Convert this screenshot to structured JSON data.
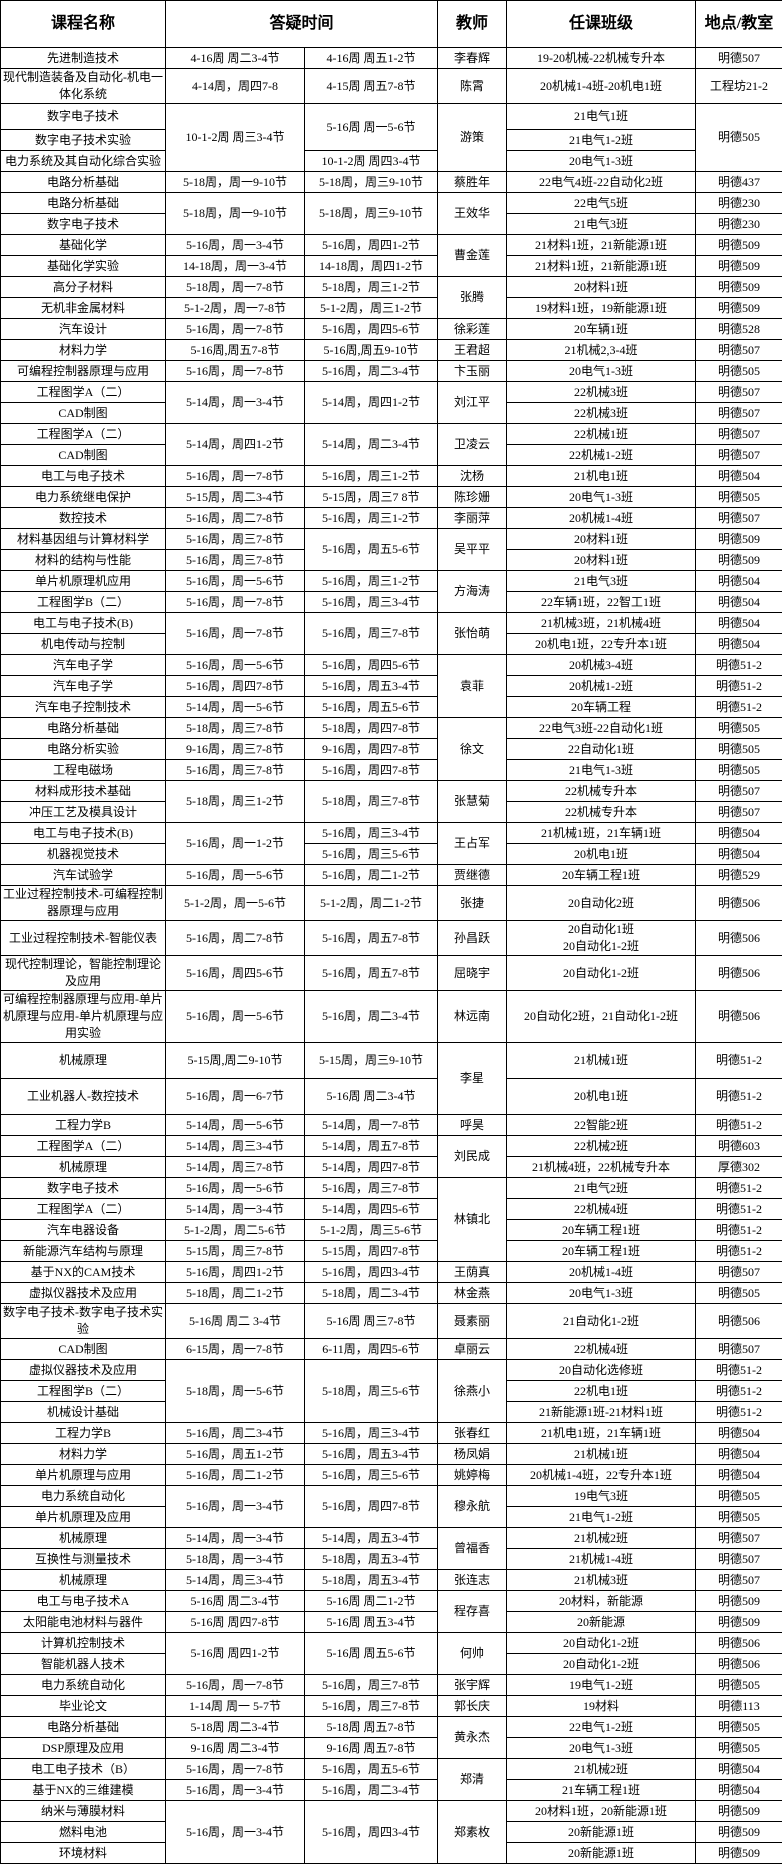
{
  "colors": {
    "border": "#000000",
    "background": "#ffffff",
    "text": "#000000"
  },
  "header": {
    "columns": [
      "课程名称",
      "答疑时间",
      "教师",
      "任课班级",
      "地点/教室"
    ]
  },
  "table": {
    "rows": [
      [
        "先进制造技术",
        "4-16周 周二3-4节",
        "4-16周 周五1-2节",
        "李春辉",
        "19-20机械-22机械专升本",
        "明德507"
      ],
      [
        "现代制造装备及自动化-机电一体化系统",
        "4-14周，周四7-8",
        "4-15周 周五7-8节",
        "陈霄",
        "20机械1-4班-20机电1班",
        "工程坊21-2"
      ],
      [
        "数字电子技术",
        {
          "t": "10-1-2周 周三3-4节",
          "rs": 3
        },
        {
          "t": "5-16周 周一5-6节",
          "rs": 2
        },
        {
          "t": "游策",
          "rs": 3
        },
        "21电气1班",
        {
          "t": "明德505",
          "rs": 3
        }
      ],
      [
        "数字电子技术实验",
        "21电气1-2班"
      ],
      [
        "电力系统及其自动化综合实验",
        "10-1-2周 周四3-4节",
        "20电气1-3班"
      ],
      [
        "电路分析基础",
        "5-18周，周一9-10节",
        "5-18周，周三9-10节",
        "蔡胜年",
        "22电气4班-22自动化2班",
        "明德437"
      ],
      [
        "电路分析基础",
        {
          "t": "5-18周，周一9-10节",
          "rs": 2
        },
        {
          "t": "5-18周，周三9-10节",
          "rs": 2
        },
        {
          "t": "王效华",
          "rs": 2
        },
        "22电气5班",
        "明德230"
      ],
      [
        "数字电子技术",
        "21电气3班",
        "明德230"
      ],
      [
        "基础化学",
        "5-16周，周一3-4节",
        "5-16周，周四1-2节",
        {
          "t": "曹金莲",
          "rs": 2
        },
        "21材料1班，21新能源1班",
        "明德509"
      ],
      [
        "基础化学实验",
        "14-18周，周一3-4节",
        "14-18周，周四1-2节",
        "21材料1班，21新能源1班",
        "明德509"
      ],
      [
        "高分子材料",
        "5-18周，周一7-8节",
        "5-18周，周三1-2节",
        {
          "t": "张腾",
          "rs": 2
        },
        "20材料1班",
        "明德509"
      ],
      [
        "无机非金属材料",
        "5-1-2周，周一7-8节",
        "5-1-2周，周三1-2节",
        "19材料1班，19新能源1班",
        "明德509"
      ],
      [
        "汽车设计",
        "5-16周，周一7-8节",
        "5-16周，周四5-6节",
        "徐彩莲",
        "20车辆1班",
        "明德528"
      ],
      [
        "材料力学",
        "5-16周,周五7-8节",
        "5-16周,周五9-10节",
        "王君超",
        "21机械2,3-4班",
        "明德507"
      ],
      [
        "可编程控制器原理与应用",
        "5-16周，周一7-8节",
        "5-16周，周二3-4节",
        "卞玉丽",
        "20电气1-3班",
        "明德505"
      ],
      [
        "工程图学A（二）",
        {
          "t": "5-14周，周一3-4节",
          "rs": 2
        },
        {
          "t": "5-14周，周四1-2节",
          "rs": 2
        },
        {
          "t": "刘江平",
          "rs": 2
        },
        "22机械3班",
        "明德507"
      ],
      [
        "CAD制图",
        "22机械3班",
        "明德507"
      ],
      [
        "工程图学A（二）",
        {
          "t": "5-14周，周四1-2节",
          "rs": 2
        },
        {
          "t": "5-14周，周二3-4节",
          "rs": 2
        },
        {
          "t": "卫凌云",
          "rs": 2
        },
        "22机械1班",
        "明德507"
      ],
      [
        "CAD制图",
        "22机械1-2班",
        "明德507"
      ],
      [
        "电工与电子技术",
        "5-16周，周一7-8节",
        "5-16周，周三1-2节",
        "沈杨",
        "21机电1班",
        "明德504"
      ],
      [
        "电力系统继电保护",
        "5-15周，周二3-4节",
        "5-15周，周三7 8节",
        "陈珍姗",
        "20电气1-3班",
        "明德505"
      ],
      [
        "数控技术",
        "5-16周，周二7-8节",
        "5-16周，周三1-2节",
        "李丽萍",
        "20机械1-4班",
        "明德507"
      ],
      [
        "材料基因组与计算材料学",
        "5-16周，周三7-8节",
        {
          "t": "5-16周，周五5-6节",
          "rs": 2
        },
        {
          "t": "吴平平",
          "rs": 2
        },
        "20材料1班",
        "明德509"
      ],
      [
        "材料的结构与性能",
        "5-16周，周三7-8节",
        "20材料1班",
        "明德509"
      ],
      [
        "单片机原理机应用",
        "5-16周，周一5-6节",
        "5-16周，周三1-2节",
        {
          "t": "方海涛",
          "rs": 2
        },
        "21电气3班",
        "明德504"
      ],
      [
        "工程图学B（二）",
        "5-16周，周一7-8节",
        "5-16周，周三3-4节",
        "22车辆1班，22智工1班",
        "明德504"
      ],
      [
        "电工与电子技术(B)",
        {
          "t": "5-16周，周一7-8节",
          "rs": 2
        },
        {
          "t": "5-16周，周三7-8节",
          "rs": 2
        },
        {
          "t": "张怡萌",
          "rs": 2
        },
        "21机械3班，21机械4班",
        "明德504"
      ],
      [
        "机电传动与控制",
        "20机电1班，22专升本1班",
        "明德504"
      ],
      [
        "汽车电子学",
        "5-16周，周一5-6节",
        "5-16周，周四5-6节",
        {
          "t": "袁菲",
          "rs": 3
        },
        "20机械3-4班",
        "明德51-2"
      ],
      [
        "汽车电子学",
        "5-16周，周四7-8节",
        "5-16周，周五3-4节",
        "20机械1-2班",
        "明德51-2"
      ],
      [
        "汽车电子控制技术",
        "5-14周，周一5-6节",
        "5-16周，周五5-6节",
        "20车辆工程",
        "明德51-2"
      ],
      [
        "电路分析基础",
        "5-18周，周三7-8节",
        "5-18周，周四7-8节",
        {
          "t": "徐文",
          "rs": 3
        },
        "22电气3班-22自动化1班",
        "明德505"
      ],
      [
        "电路分析实验",
        "9-16周，周三7-8节",
        "9-16周，周四7-8节",
        "22自动化1班",
        "明德505"
      ],
      [
        "工程电磁场",
        "5-16周，周三7-8节",
        "5-16周，周四7-8节",
        "21电气1-3班",
        "明德505"
      ],
      [
        "材料成形技术基础",
        {
          "t": "5-18周，周三1-2节",
          "rs": 2
        },
        {
          "t": "5-18周，周三7-8节",
          "rs": 2
        },
        {
          "t": "张慧菊",
          "rs": 2
        },
        "22机械专升本",
        "明德507"
      ],
      [
        "冲压工艺及模具设计",
        "22机械专升本",
        "明德507"
      ],
      [
        "电工与电子技术(B)",
        {
          "t": "5-16周，周一1-2节",
          "rs": 2
        },
        "5-16周，周三3-4节",
        {
          "t": "王占军",
          "rs": 2
        },
        "21机械1班，21车辆1班",
        "明德504"
      ],
      [
        "机器视觉技术",
        "5-16周，周三5-6节",
        "20机电1班",
        "明德504"
      ],
      [
        "汽车试验学",
        "5-16周，周一5-6节",
        "5-16周，周二1-2节",
        "贾继德",
        "20车辆工程1班",
        "明德529"
      ],
      [
        "工业过程控制技术-可编程控制器原理与应用",
        "5-1-2周，周一5-6节",
        "5-1-2周，周二1-2节",
        "张捷",
        "20自动化2班",
        "明德506"
      ],
      [
        "工业过程控制技术-智能仪表",
        "5-16周，周二7-8节",
        "5-16周，周五7-8节",
        "孙昌跃",
        "20自动化1班\n20自动化1-2班",
        "明德506"
      ],
      [
        "现代控制理论，智能控制理论及应用",
        "5-16周，周四5-6节",
        "5-16周，周五7-8节",
        "屈晓宇",
        "20自动化1-2班",
        "明德506"
      ],
      [
        "可编程控制器原理与应用-单片机原理与应用-单片机原理与应用实验",
        "5-16周，周一5-6节",
        "5-16周，周二3-4节",
        "林远南",
        "20自动化2班，21自动化1-2班",
        "明德506"
      ],
      [
        "机械原理",
        "5-15周,周二9-10节",
        "5-15周，周三9-10节",
        {
          "t": "李星",
          "rs": 2
        },
        "21机械1班",
        "明德51-2"
      ],
      [
        "工业机器人-数控技术",
        "5-16周，周一6-7节",
        "5-16周 周二3-4节",
        "20机电1班",
        "明德51-2"
      ],
      [
        "工程力学B",
        "5-14周，周一5-6节",
        "5-14周，周一7-8节",
        "呼昊",
        "22智能2班",
        "明德51-2"
      ],
      [
        "工程图学A（二）",
        "5-14周，周三3-4节",
        "5-14周，周五7-8节",
        {
          "t": "刘民成",
          "rs": 2
        },
        "22机械2班",
        "明德603"
      ],
      [
        "机械原理",
        "5-14周，周三7-8节",
        "5-14周，周四7-8节",
        "21机械4班，22机械专升本",
        "厚德302"
      ],
      [
        "数字电子技术",
        "5-16周，周一5-6节",
        "5-16周，周三7-8节",
        {
          "t": "林镇北",
          "rs": 4
        },
        "21电气2班",
        "明德51-2"
      ],
      [
        "工程图学A（二）",
        "5-14周，周一3-4节",
        "5-14周，周四5-6节",
        "22机械4班",
        "明德51-2"
      ],
      [
        "汽车电器设备",
        "5-1-2周，周二5-6节",
        "5-1-2周，周三5-6节",
        "20车辆工程1班",
        "明德51-2"
      ],
      [
        "新能源汽车结构与原理",
        "5-15周，周三7-8节",
        "5-15周，周四7-8节",
        "20车辆工程1班",
        "明德51-2"
      ],
      [
        "基于NX的CAM技术",
        "5-16周，周四1-2节",
        "5-16周，周四3-4节",
        "王荫真",
        "20机械1-4班",
        "明德507"
      ],
      [
        "虚拟仪器技术及应用",
        "5-18周，周二1-2节",
        "5-18周，周二3-4节",
        "林金燕",
        "20电气1-3班",
        "明德505"
      ],
      [
        "数字电子技术-数字电子技术实验",
        "5-16周 周二 3-4节",
        "5-16周 周三7-8节",
        "聂素丽",
        "21自动化1-2班",
        "明德506"
      ],
      [
        "CAD制图",
        "6-15周，周一7-8节",
        "6-11周，周四5-6节",
        "卓丽云",
        "22机械4班",
        "明德507"
      ],
      [
        "虚拟仪器技术及应用",
        {
          "t": "5-18周，周一5-6节",
          "rs": 3
        },
        {
          "t": "5-18周，周三5-6节",
          "rs": 3
        },
        {
          "t": "徐燕小",
          "rs": 3
        },
        "20自动化选修班",
        "明德51-2"
      ],
      [
        "工程图学B（二）",
        "22机电1班",
        "明德51-2"
      ],
      [
        "机械设计基础",
        "21新能源1班-21材料1班",
        "明德51-2"
      ],
      [
        "工程力学B",
        "5-16周，周二3-4节",
        "5-16周，周三3-4节",
        "张春红",
        "21机电1班，21车辆1班",
        "明德504"
      ],
      [
        "材料力学",
        "5-16周，周五1-2节",
        "5-16周，周五3-4节",
        "杨凤娟",
        "21机械1班",
        "明德504"
      ],
      [
        "单片机原理与应用",
        "5-16周，周二1-2节",
        "5-16周，周三5-6节",
        "姚婷梅",
        "20机械1-4班，22专升本1班",
        "明德504"
      ],
      [
        "电力系统自动化",
        {
          "t": "5-16周，周一3-4节",
          "rs": 2
        },
        {
          "t": "5-16周，周四7-8节",
          "rs": 2
        },
        {
          "t": "穆永航",
          "rs": 2
        },
        "19电气3班",
        "明德505"
      ],
      [
        "单片机原理及应用",
        "21电气1-2班",
        "明德505"
      ],
      [
        "机械原理",
        "5-14周，周一3-4节",
        "5-14周，周五3-4节",
        {
          "t": "曾福香",
          "rs": 2
        },
        "21机械2班",
        "明德507"
      ],
      [
        "互换性与测量技术",
        "5-18周，周一3-4节",
        "5-18周，周五3-4节",
        "21机械1-4班",
        "明德507"
      ],
      [
        "机械原理",
        "5-14周，周三3-4节",
        "5-18周，周五3-4节",
        "张连志",
        "21机械3班",
        "明德507"
      ],
      [
        "电工与电子技术A",
        "5-16周 周二3-4节",
        "5-16周 周二1-2节",
        {
          "t": "程存喜",
          "rs": 2
        },
        "20材料，新能源",
        "明德509"
      ],
      [
        "太阳能电池材料与器件",
        "5-16周 周四7-8节",
        "5-16周 周五3-4节",
        "20新能源",
        "明德509"
      ],
      [
        "计算机控制技术",
        {
          "t": "5-16周 周四1-2节",
          "rs": 2
        },
        {
          "t": "5-16周 周五5-6节",
          "rs": 2
        },
        {
          "t": "何帅",
          "rs": 2
        },
        "20自动化1-2班",
        "明德506"
      ],
      [
        "智能机器人技术",
        "20自动化1-2班",
        "明德506"
      ],
      [
        "电力系统自动化",
        "5-16周，周一7-8节",
        "5-16周，周三7-8节",
        "张宇辉",
        "19电气1-2班",
        "明德505"
      ],
      [
        "毕业论文",
        "1-14周 周一 5-7节",
        "5-16周，周三7-8节",
        "郭长庆",
        "19材料",
        "明德113"
      ],
      [
        "电路分析基础",
        "5-18周 周二3-4节",
        "5-18周 周五7-8节",
        {
          "t": "黄永杰",
          "rs": 2
        },
        "22电气1-2班",
        "明德505"
      ],
      [
        "DSP原理及应用",
        "9-16周 周二3-4节",
        "9-16周 周五7-8节",
        "20电气1-3班",
        "明德505"
      ],
      [
        "电工电子技术（B）",
        "5-16周，周一7-8节",
        "5-16周，周五5-6节",
        {
          "t": "郑清",
          "rs": 2
        },
        "21机械2班",
        "明德504"
      ],
      [
        "基于NX的三维建模",
        "5-16周，周一3-4节",
        "5-16周，周二3-4节",
        "21车辆工程1班",
        "明德504"
      ],
      [
        "纳米与薄膜材料",
        {
          "t": "5-16周，周一3-4节",
          "rs": 3
        },
        {
          "t": "5-16周，周四3-4节",
          "rs": 3
        },
        {
          "t": "郑素枚",
          "rs": 3
        },
        "20材料1班，20新能源1班",
        "明德509"
      ],
      [
        "燃料电池",
        "20新能源1班",
        "明德509"
      ],
      [
        "环境材料",
        "20新能源1班",
        "明德509"
      ]
    ]
  }
}
